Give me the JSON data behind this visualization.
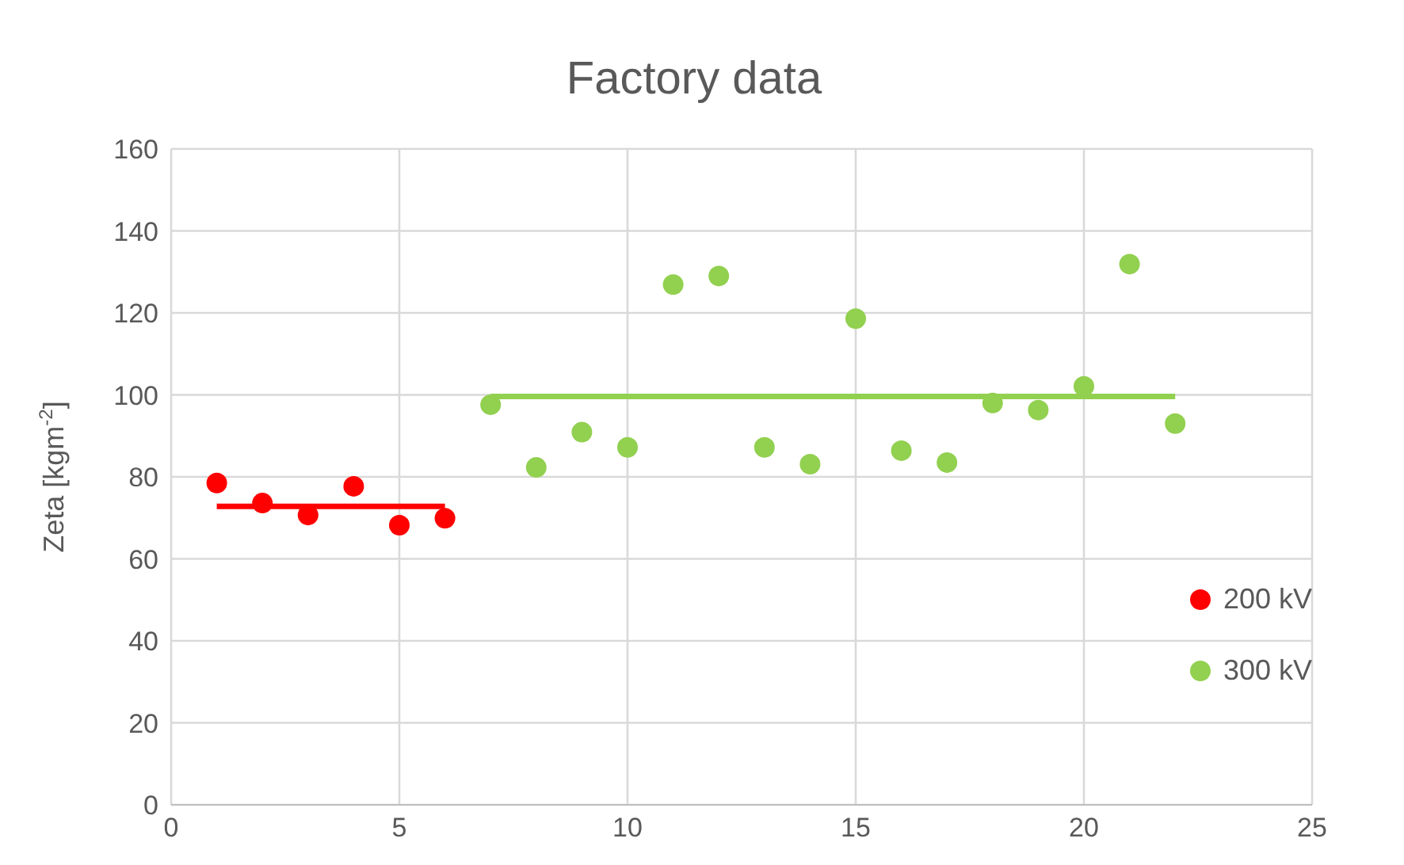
{
  "chart_data": {
    "type": "scatter",
    "title": "Factory data",
    "ylabel": "Zeta [kgm$^{-2}$]",
    "xlim": [
      0,
      25
    ],
    "xticks": [
      0,
      5,
      10,
      15,
      20,
      25
    ],
    "ylim": [
      0,
      160
    ],
    "yticks": [
      0,
      20,
      40,
      60,
      80,
      100,
      120,
      140,
      160
    ],
    "grid": true,
    "legend": "bottom right",
    "marker": "circle",
    "series": [
      {
        "name": "200 kV",
        "color": "#ff0000",
        "x": [
          1,
          2,
          3,
          4,
          5,
          6
        ],
        "values": [
          78.5,
          73.6,
          70.7,
          77.7,
          68.2,
          69.9
        ]
      },
      {
        "name": "300 kV",
        "color": "#92d050",
        "x": [
          7,
          8,
          9,
          10,
          11,
          12,
          13,
          14,
          15,
          16,
          17,
          18,
          19,
          20,
          21,
          22
        ],
        "values": [
          97.6,
          82.3,
          90.9,
          87.2,
          126.9,
          129,
          87.2,
          83.1,
          118.6,
          86.4,
          83.5,
          98,
          96.3,
          102.1,
          131.9,
          93
        ]
      },
      {
        "type": "line",
        "color": "#ff0000",
        "marker": "none",
        "x": [
          1,
          6
        ],
        "values": [
          72.8,
          72.8
        ]
      },
      {
        "type": "line",
        "color": "#92d050",
        "marker": "none",
        "x": [
          7,
          22
        ],
        "values": [
          99.6,
          99.6
        ]
      }
    ]
  }
}
